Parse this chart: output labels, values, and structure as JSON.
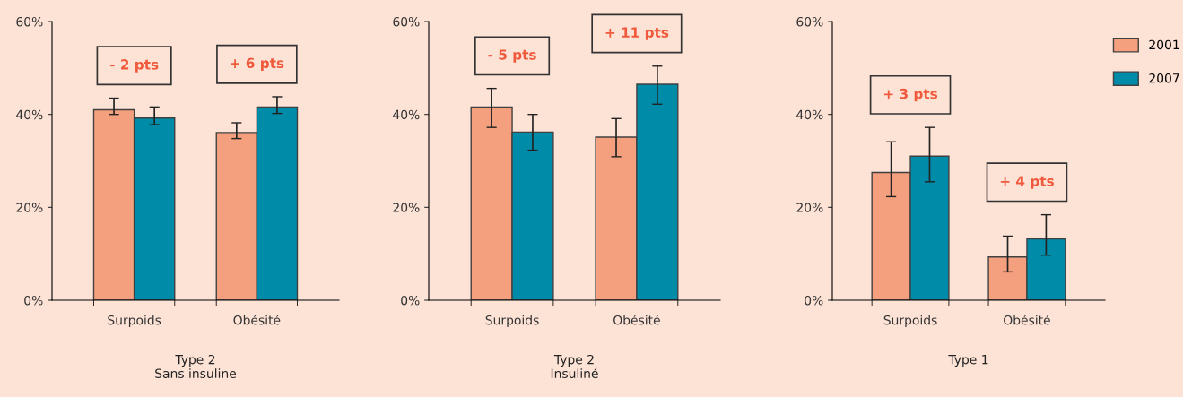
{
  "chart_data": [
    {
      "type": "bar",
      "xlabel": "Type 2\nSans insuline",
      "categories": [
        "Surpoids",
        "Obésité"
      ],
      "ylim": [
        0,
        60
      ],
      "yticks": [
        {
          "value": 0,
          "label": "0%"
        },
        {
          "value": 20,
          "label": "20%"
        },
        {
          "value": 40,
          "label": "40%"
        },
        {
          "value": 60,
          "label": "60%"
        }
      ],
      "grid": false,
      "legend": false,
      "series": [
        {
          "color": "#f4a07e",
          "values": [
            41.0,
            36.1
          ],
          "errors": [
            [
              40.0,
              43.5
            ],
            [
              34.8,
              38.2
            ]
          ]
        },
        {
          "color": "#008ca8",
          "values": [
            39.2,
            41.6
          ],
          "errors": [
            [
              37.8,
              41.6
            ],
            [
              40.2,
              43.8
            ]
          ]
        }
      ],
      "annotations": [
        "- 2 pts",
        "+ 6 pts"
      ]
    },
    {
      "type": "bar",
      "xlabel": "Type 2\nInsuliné",
      "categories": [
        "Surpoids",
        "Obésité"
      ],
      "ylim": [
        0,
        60
      ],
      "yticks": [
        {
          "value": 0,
          "label": "0%"
        },
        {
          "value": 20,
          "label": "20%"
        },
        {
          "value": 40,
          "label": "40%"
        },
        {
          "value": 60,
          "label": "60%"
        }
      ],
      "grid": false,
      "legend": false,
      "series": [
        {
          "color": "#f4a07e",
          "values": [
            41.6,
            35.1
          ],
          "errors": [
            [
              37.2,
              45.6
            ],
            [
              30.9,
              39.1
            ]
          ]
        },
        {
          "color": "#008ca8",
          "values": [
            36.2,
            46.5
          ],
          "errors": [
            [
              32.3,
              40.0
            ],
            [
              42.2,
              50.4
            ]
          ]
        }
      ],
      "annotations": [
        "- 5 pts",
        "+ 11 pts"
      ]
    },
    {
      "type": "bar",
      "xlabel": "Type 1",
      "categories": [
        "Surpoids",
        "Obésité"
      ],
      "ylim": [
        0,
        60
      ],
      "yticks": [
        {
          "value": 0,
          "label": "0%"
        },
        {
          "value": 20,
          "label": "20%"
        },
        {
          "value": 40,
          "label": "40%"
        },
        {
          "value": 60,
          "label": "60%"
        }
      ],
      "grid": false,
      "legend": "top right",
      "series": [
        {
          "name": "2001",
          "color": "#f4a07e",
          "values": [
            27.5,
            9.3
          ],
          "errors": [
            [
              22.3,
              34.1
            ],
            [
              6.1,
              13.8
            ]
          ]
        },
        {
          "name": "2007",
          "color": "#008ca8",
          "values": [
            31.0,
            13.2
          ],
          "errors": [
            [
              25.5,
              37.2
            ],
            [
              9.7,
              18.4
            ]
          ]
        }
      ],
      "annotations": [
        "+ 3 pts",
        "+ 4 pts"
      ]
    }
  ]
}
